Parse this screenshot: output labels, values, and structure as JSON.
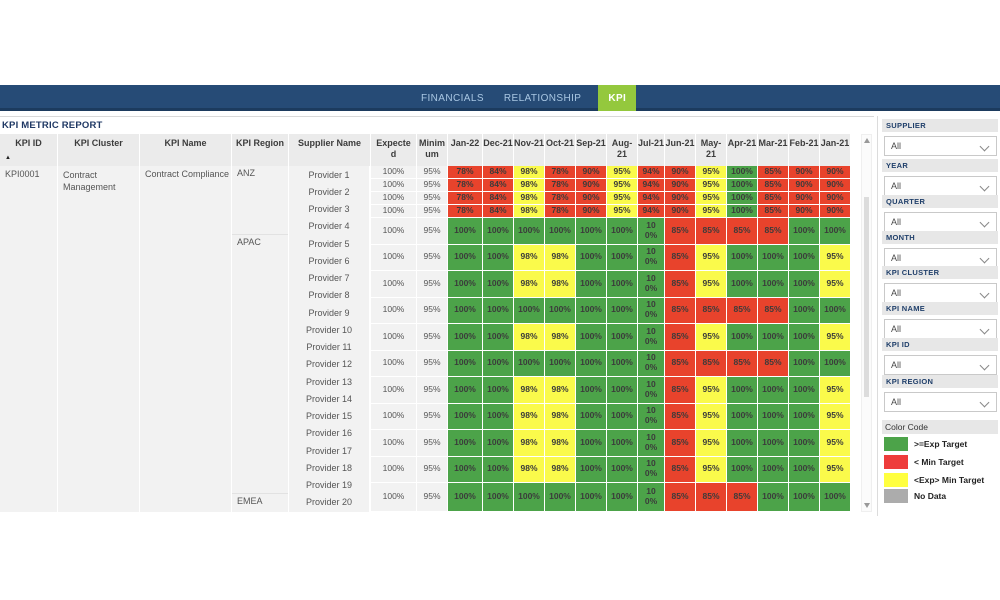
{
  "nav": {
    "tabs": [
      {
        "label": "FINANCIALS",
        "active": false
      },
      {
        "label": "RELATIONSHIP",
        "active": false
      },
      {
        "label": "KPI",
        "active": true
      }
    ]
  },
  "report": {
    "title": "KPI METRIC REPORT",
    "headers": {
      "kpi_id": "KPI ID",
      "kpi_cluster": "KPI Cluster",
      "kpi_name": "KPI Name",
      "kpi_region": "KPI Region",
      "supplier": "Supplier Name",
      "expected": "Expected",
      "minimum": "Minimum"
    },
    "months": [
      "Jan-22",
      "Dec-21",
      "Nov-21",
      "Oct-21",
      "Sep-21",
      "Aug-21",
      "Jul-21",
      "Jun-21",
      "May-21",
      "Apr-21",
      "Mar-21",
      "Feb-21",
      "Jan-21"
    ],
    "kpi": {
      "id": "KPI0001",
      "cluster": "Contract Management",
      "name": "Contract Compliance"
    },
    "regions": [
      {
        "label": "ANZ",
        "rows": 4
      },
      {
        "label": "APAC",
        "rows": 15
      },
      {
        "label": "EMEA",
        "rows": 1
      }
    ],
    "suppliers": [
      "Provider 1",
      "Provider 2",
      "Provider 3",
      "Provider 4",
      "Provider 5",
      "Provider 6",
      "Provider 7",
      "Provider 8",
      "Provider 9",
      "Provider 10",
      "Provider 11",
      "Provider 12",
      "Provider 13",
      "Provider 14",
      "Provider 15",
      "Provider 16",
      "Provider 17",
      "Provider 18",
      "Provider 19",
      "Provider 20"
    ],
    "expected_value": "100%",
    "minimum_value": "95%",
    "row_patterns": {
      "R": [
        [
          "78%",
          "r"
        ],
        [
          "84%",
          "r"
        ],
        [
          "98%",
          "y"
        ],
        [
          "78%",
          "r"
        ],
        [
          "90%",
          "r"
        ],
        [
          "95%",
          "y"
        ],
        [
          "94%",
          "r"
        ],
        [
          "90%",
          "r"
        ],
        [
          "95%",
          "y"
        ],
        [
          "100%",
          "g"
        ],
        [
          "85%",
          "r"
        ],
        [
          "90%",
          "r"
        ],
        [
          "90%",
          "r"
        ]
      ],
      "A": [
        [
          "100%",
          "g"
        ],
        [
          "100%",
          "g"
        ],
        [
          "100%",
          "g"
        ],
        [
          "100%",
          "g"
        ],
        [
          "100%",
          "g"
        ],
        [
          "100%",
          "g"
        ],
        [
          "100%",
          "g"
        ],
        [
          "85%",
          "r"
        ],
        [
          "85%",
          "r"
        ],
        [
          "85%",
          "r"
        ],
        [
          "85%",
          "r"
        ],
        [
          "100%",
          "g"
        ],
        [
          "100%",
          "g"
        ]
      ],
      "B": [
        [
          "100%",
          "g"
        ],
        [
          "100%",
          "g"
        ],
        [
          "98%",
          "y"
        ],
        [
          "98%",
          "y"
        ],
        [
          "100%",
          "g"
        ],
        [
          "100%",
          "g"
        ],
        [
          "100%",
          "g"
        ],
        [
          "85%",
          "r"
        ],
        [
          "95%",
          "y"
        ],
        [
          "100%",
          "g"
        ],
        [
          "100%",
          "g"
        ],
        [
          "100%",
          "g"
        ],
        [
          "95%",
          "y"
        ]
      ],
      "C": [
        [
          "100%",
          "g"
        ],
        [
          "100%",
          "g"
        ],
        [
          "100%",
          "g"
        ],
        [
          "100%",
          "g"
        ],
        [
          "100%",
          "g"
        ],
        [
          "100%",
          "g"
        ],
        [
          "100%",
          "g"
        ],
        [
          "85%",
          "r"
        ],
        [
          "85%",
          "r"
        ],
        [
          "85%",
          "r"
        ],
        [
          "100%",
          "g"
        ],
        [
          "100%",
          "g"
        ],
        [
          "100%",
          "g"
        ]
      ]
    },
    "row_sequence": [
      "R",
      "R",
      "R",
      "R",
      "A",
      "B",
      "B",
      "A",
      "B",
      "A",
      "B",
      "B",
      "B",
      "B",
      "C"
    ]
  },
  "filters": [
    {
      "label": "SUPPLIER",
      "value": "All"
    },
    {
      "label": "YEAR",
      "value": "All"
    },
    {
      "label": "QUARTER",
      "value": "All"
    },
    {
      "label": "MONTH",
      "value": "All"
    },
    {
      "label": "KPI CLUSTER",
      "value": "All"
    },
    {
      "label": "KPI NAME",
      "value": "All"
    },
    {
      "label": "KPI ID",
      "value": "All"
    },
    {
      "label": "KPI REGION",
      "value": "All"
    }
  ],
  "legend": {
    "title": "Color Code",
    "items": [
      {
        "label": ">=Exp Target",
        "color": "#4CA349"
      },
      {
        "label": "< Min Target",
        "color": "#EE3C3B"
      },
      {
        "label": "<Exp> Min Target",
        "color": "#FFFF3F"
      },
      {
        "label": "No Data",
        "color": "#ACACAC"
      }
    ]
  },
  "colors": {
    "cell_green": "#4CA349",
    "cell_red": "#E8432C",
    "cell_yellow": "#FAFA4B",
    "navbar": "#264B76",
    "active_tab": "#94C83D",
    "title_text": "#1F3864"
  }
}
